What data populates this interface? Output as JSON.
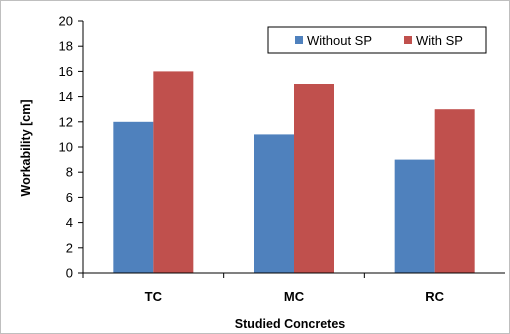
{
  "chart_data": {
    "type": "bar",
    "categories": [
      "TC",
      "MC",
      "RC"
    ],
    "series": [
      {
        "name": "Without SP",
        "values": [
          12,
          11,
          9
        ],
        "color": "#4F81BD"
      },
      {
        "name": "With SP",
        "values": [
          16,
          15,
          13
        ],
        "color": "#C0504D"
      }
    ],
    "xlabel": "Studied Concretes",
    "ylabel": "Workability [cm]",
    "ylim": [
      0,
      20
    ],
    "yticks": [
      0,
      2,
      4,
      6,
      8,
      10,
      12,
      14,
      16,
      18,
      20
    ],
    "grid": false,
    "legend_position": "top-right"
  }
}
